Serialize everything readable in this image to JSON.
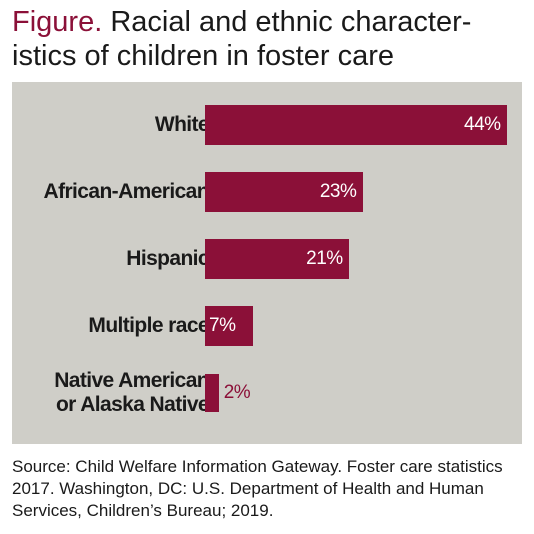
{
  "title": {
    "prefix": "Figure.",
    "text": "Racial and ethnic character-istics of children in foster care"
  },
  "source": "Source: Child Welfare Information Gateway. Foster care statistics 2017. Washington, DC: U.S. Department of Health and Human Services, Children’s Bureau; 2019.",
  "colors": {
    "bar": "#8b1038",
    "plot_bg": "#cfcec8"
  },
  "chart_data": {
    "type": "bar",
    "orientation": "horizontal",
    "title": "Racial and ethnic characteristics of children in foster care",
    "categories": [
      "White",
      "African-American",
      "Hispanic",
      "Multiple race",
      "Native American\nor Alaska Native"
    ],
    "values": [
      44,
      23,
      21,
      7,
      2
    ],
    "value_labels": [
      "44%",
      "23%",
      "21%",
      "7%",
      "2%"
    ],
    "unit": "%",
    "xlim": [
      0,
      44
    ],
    "grid": false,
    "legend": false
  }
}
